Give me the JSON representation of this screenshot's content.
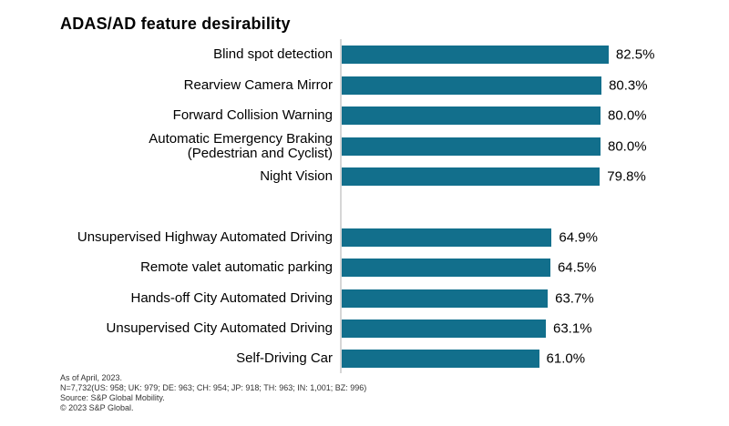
{
  "title": "ADAS/AD feature desirability",
  "colors": {
    "bar": "#126F8C",
    "axis_line": "#D6D6D6",
    "text": "#000000",
    "footer_text": "#333333",
    "background": "#FFFFFF"
  },
  "chart_data": {
    "type": "bar",
    "orientation": "horizontal",
    "title": "ADAS/AD feature desirability",
    "xlabel": "",
    "ylabel": "",
    "xlim": [
      0,
      100
    ],
    "grid": false,
    "legend": false,
    "value_suffix": "%",
    "gap_after_index": 4,
    "categories": [
      "Blind spot detection",
      "Rearview Camera Mirror",
      "Forward Collision Warning",
      "Automatic Emergency Braking\n(Pedestrian and Cyclist)",
      "Night Vision",
      "Unsupervised Highway Automated Driving",
      "Remote valet automatic parking",
      "Hands-off City Automated Driving",
      "Unsupervised City Automated Driving",
      "Self-Driving Car"
    ],
    "values": [
      82.5,
      80.3,
      80.0,
      80.0,
      79.8,
      64.9,
      64.5,
      63.7,
      63.1,
      61.0
    ],
    "value_labels": [
      "82.5%",
      "80.3%",
      "80.0%",
      "80.0%",
      "79.8%",
      "64.9%",
      "64.5%",
      "63.7%",
      "63.1%",
      "61.0%"
    ]
  },
  "footer": {
    "lines": [
      "As of April, 2023.",
      "N=7,732(US: 958; UK: 979; DE: 963; CH: 954; JP: 918; TH: 963; IN: 1,001; BZ: 996)",
      "Source: S&P Global Mobility.",
      "© 2023 S&P Global."
    ]
  }
}
